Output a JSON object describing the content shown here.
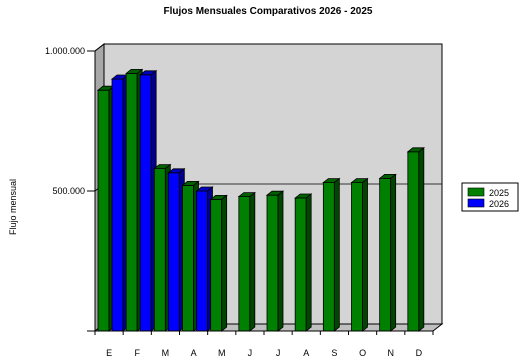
{
  "chart_data": {
    "type": "bar",
    "title": "Flujos Mensuales Comparativos 2026 - 2025",
    "ylabel": "Flujo mensual",
    "xlabel": "",
    "categories": [
      "E",
      "F",
      "M",
      "A",
      "M",
      "J",
      "J",
      "A",
      "S",
      "O",
      "N",
      "D"
    ],
    "ylim": [
      0,
      1000000
    ],
    "yticks": [
      {
        "value": 0,
        "label": ""
      },
      {
        "value": 500000,
        "label": "500.000"
      },
      {
        "value": 1000000,
        "label": "1.000.000"
      }
    ],
    "grid": true,
    "legend_position": "right",
    "series": [
      {
        "name": "2025",
        "color": "#008000",
        "values": [
          860000,
          920000,
          580000,
          520000,
          470000,
          480000,
          485000,
          475000,
          530000,
          530000,
          545000,
          640000
        ]
      },
      {
        "name": "2026",
        "color": "#0000ff",
        "values": [
          900000,
          915000,
          565000,
          500000,
          null,
          null,
          null,
          null,
          null,
          null,
          null,
          null
        ]
      }
    ]
  },
  "colors": {
    "plot_back": "#d4d4d4",
    "side_wall": "#a8a8a8",
    "floor": "#c0c0c0"
  }
}
